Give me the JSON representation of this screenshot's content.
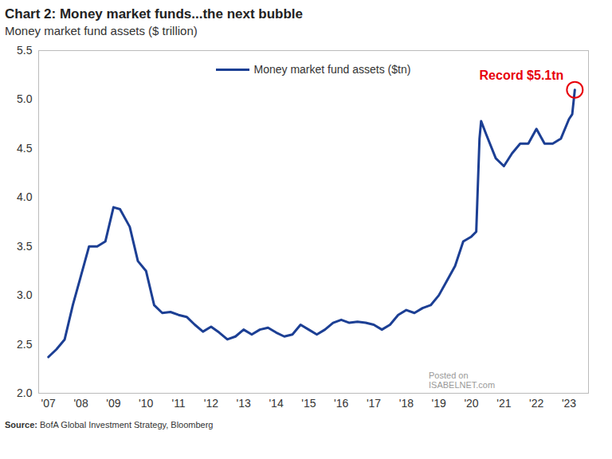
{
  "chart_data": {
    "type": "line",
    "title": "Chart 2: Money market funds...the next bubble",
    "subtitle": "Money market fund assets ($ trillion)",
    "source": "Source: BofA Global Investment Strategy, Bloomberg",
    "watermark": "Posted on ISABELNET.com",
    "x": [
      2007.0,
      2007.25,
      2007.5,
      2007.75,
      2008.0,
      2008.25,
      2008.5,
      2008.75,
      2009.0,
      2009.2,
      2009.5,
      2009.75,
      2010.0,
      2010.25,
      2010.5,
      2010.75,
      2011.0,
      2011.25,
      2011.5,
      2011.75,
      2012.0,
      2012.25,
      2012.5,
      2012.75,
      2013.0,
      2013.25,
      2013.5,
      2013.75,
      2014.0,
      2014.25,
      2014.5,
      2014.75,
      2015.0,
      2015.25,
      2015.5,
      2015.75,
      2016.0,
      2016.25,
      2016.5,
      2016.75,
      2017.0,
      2017.25,
      2017.5,
      2017.75,
      2018.0,
      2018.25,
      2018.5,
      2018.75,
      2019.0,
      2019.25,
      2019.5,
      2019.75,
      2020.0,
      2020.15,
      2020.25,
      2020.3,
      2020.45,
      2020.75,
      2021.0,
      2021.25,
      2021.5,
      2021.75,
      2022.0,
      2022.25,
      2022.5,
      2022.75,
      2023.0,
      2023.1,
      2023.18
    ],
    "series": [
      {
        "name": "Money market fund assets ($tn)",
        "color": "#1c3f94",
        "values": [
          2.37,
          2.45,
          2.55,
          2.9,
          3.2,
          3.5,
          3.5,
          3.55,
          3.9,
          3.88,
          3.7,
          3.35,
          3.25,
          2.9,
          2.82,
          2.83,
          2.8,
          2.78,
          2.7,
          2.63,
          2.68,
          2.62,
          2.55,
          2.58,
          2.65,
          2.6,
          2.65,
          2.67,
          2.62,
          2.58,
          2.6,
          2.7,
          2.65,
          2.6,
          2.65,
          2.72,
          2.75,
          2.72,
          2.73,
          2.72,
          2.7,
          2.65,
          2.7,
          2.8,
          2.85,
          2.82,
          2.87,
          2.9,
          3.0,
          3.15,
          3.3,
          3.55,
          3.6,
          3.65,
          4.6,
          4.78,
          4.65,
          4.4,
          4.32,
          4.45,
          4.55,
          4.55,
          4.7,
          4.55,
          4.55,
          4.6,
          4.8,
          4.85,
          5.1
        ]
      }
    ],
    "xlim": [
      2006.7,
      2023.6
    ],
    "ylim": [
      2.0,
      5.5
    ],
    "xticks": [
      {
        "value": 2007,
        "label": "'07"
      },
      {
        "value": 2008,
        "label": "'08"
      },
      {
        "value": 2009,
        "label": "'09"
      },
      {
        "value": 2010,
        "label": "'10"
      },
      {
        "value": 2011,
        "label": "'11"
      },
      {
        "value": 2012,
        "label": "'12"
      },
      {
        "value": 2013,
        "label": "'13"
      },
      {
        "value": 2014,
        "label": "'14"
      },
      {
        "value": 2015,
        "label": "'15"
      },
      {
        "value": 2016,
        "label": "'16"
      },
      {
        "value": 2017,
        "label": "'17"
      },
      {
        "value": 2018,
        "label": "'18"
      },
      {
        "value": 2019,
        "label": "'19"
      },
      {
        "value": 2020,
        "label": "'20"
      },
      {
        "value": 2021,
        "label": "'21"
      },
      {
        "value": 2022,
        "label": "'22"
      },
      {
        "value": 2023,
        "label": "'23"
      }
    ],
    "yticks": [
      {
        "value": 2.0,
        "label": "2.0"
      },
      2.5,
      {
        "value": 3.0,
        "label": "3.0"
      },
      3.5,
      {
        "value": 4.0,
        "label": "4.0"
      },
      4.5,
      {
        "value": 5.0,
        "label": "5.0"
      },
      5.5
    ],
    "grid": false,
    "legend": "top",
    "annotations": [
      {
        "text": "Record $5.1tn",
        "x": 2023.18,
        "y": 5.1,
        "color": "#e8000b"
      }
    ]
  }
}
